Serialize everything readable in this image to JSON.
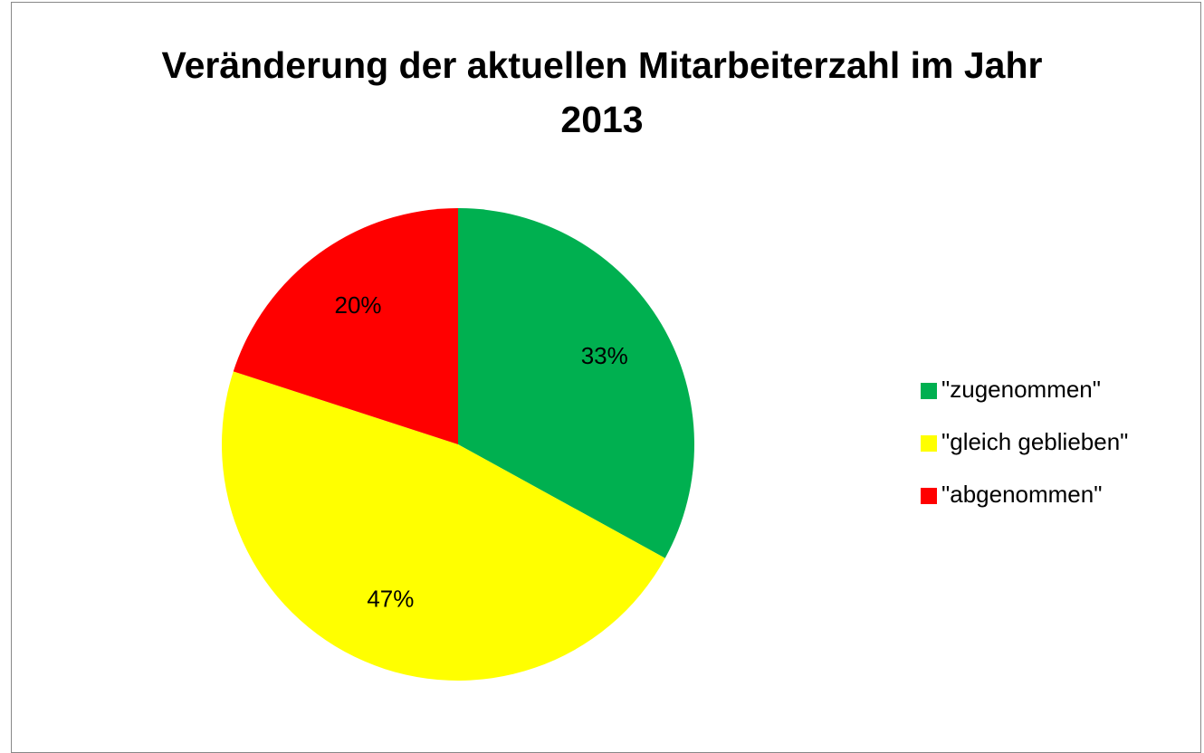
{
  "chart_data": {
    "type": "pie",
    "title": "Veränderung der aktuellen Mitarbeiterzahl im Jahr 2013",
    "categories": [
      "\"zugenommen\"",
      "\"gleich geblieben\"",
      "\"abgenommen\""
    ],
    "values": [
      33,
      47,
      20
    ],
    "value_labels": [
      "33%",
      "47%",
      "20%"
    ],
    "colors": [
      "#00b050",
      "#ffff00",
      "#ff0000"
    ],
    "legend": "right"
  }
}
